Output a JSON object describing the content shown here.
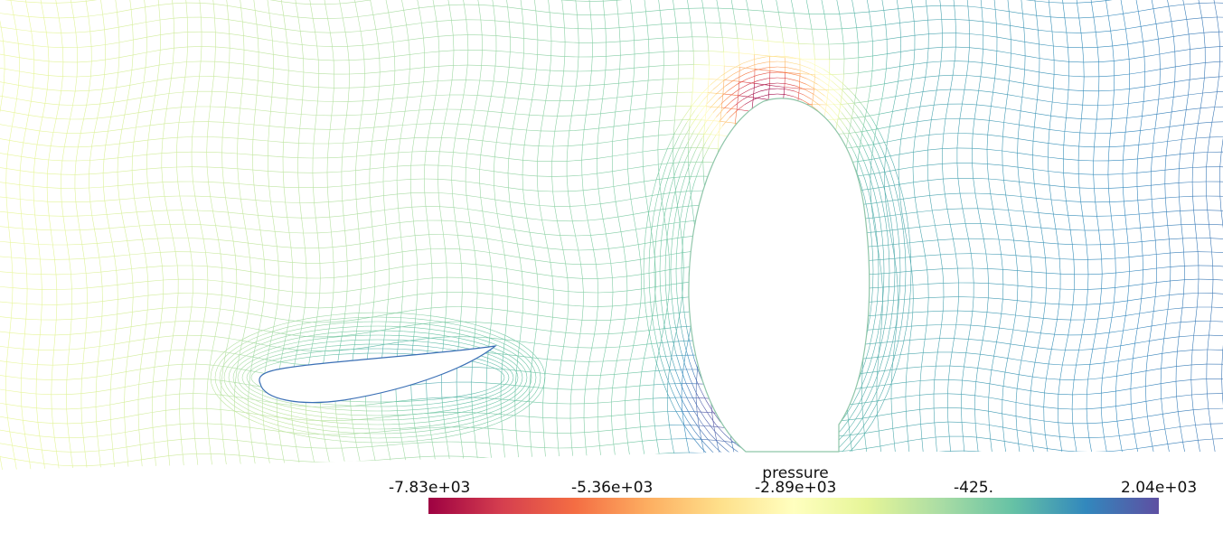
{
  "colorbar": {
    "title": "pressure",
    "ticks": [
      "-7.83e+03",
      "-5.36e+03",
      "-2.89e+03",
      "-425.",
      "2.04e+03"
    ],
    "range": [
      -7830,
      2040
    ],
    "colors": [
      "#9e0142",
      "#d53e4f",
      "#f46d43",
      "#fdae61",
      "#fee08b",
      "#ffffbf",
      "#e6f598",
      "#abdda4",
      "#66c2a5",
      "#3288bd",
      "#5e4fa2"
    ]
  }
}
